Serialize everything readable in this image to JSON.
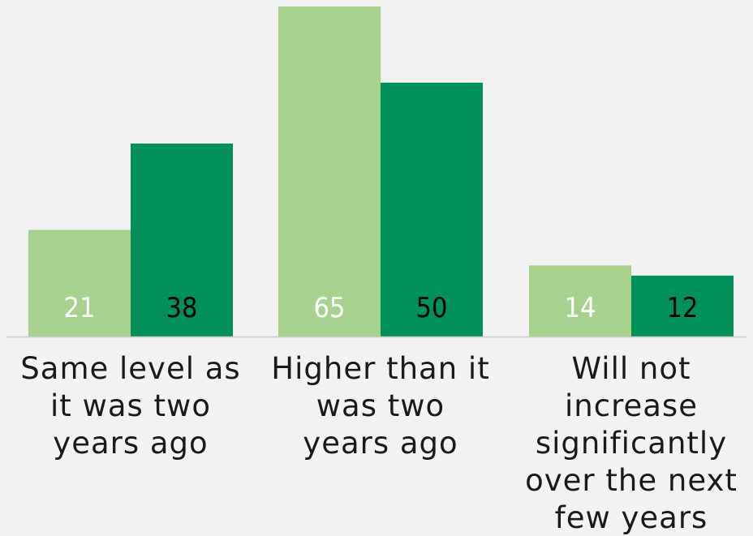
{
  "chart_data": {
    "type": "bar",
    "categories": [
      "Same level as\nit was two\nyears ago",
      "Higher than it\nwas two\nyears ago",
      "Will not\nincrease\nsignificantly\nover the next\nfew years"
    ],
    "series": [
      {
        "values": [
          21,
          65,
          14
        ]
      },
      {
        "values": [
          38,
          50,
          12
        ]
      }
    ],
    "ylim": [
      0,
      65
    ],
    "grid": false,
    "legend": "none",
    "colors": {
      "series_1": "#a9d18e",
      "series_2": "#00905a",
      "label_light": "#ffffff",
      "label_dark": "#000000",
      "axis": "#cccccc",
      "background": "#f2f2f2"
    }
  }
}
